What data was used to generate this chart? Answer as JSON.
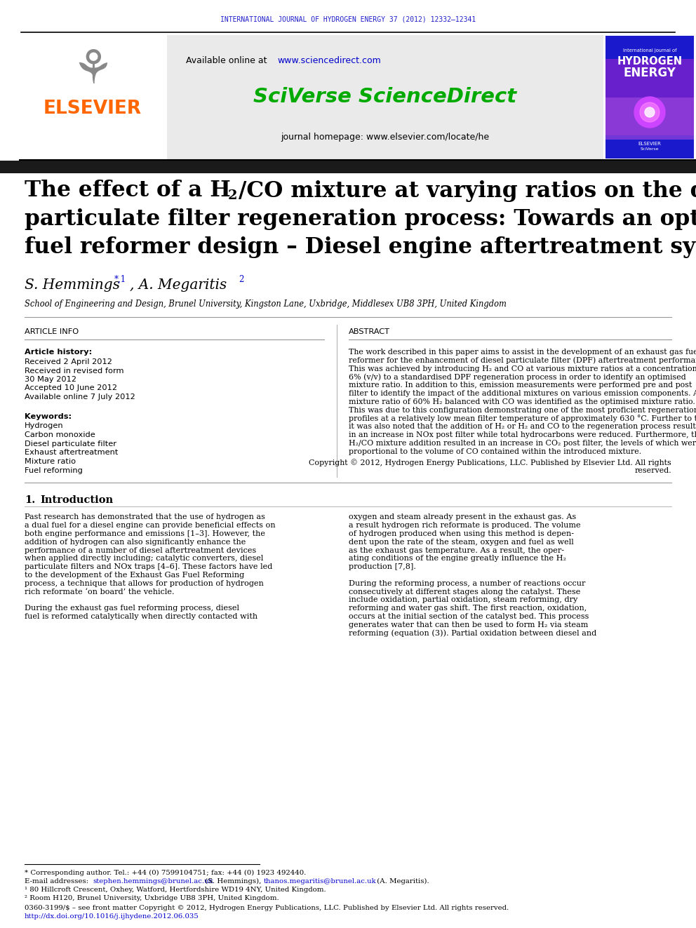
{
  "journal_header": "INTERNATIONAL JOURNAL OF HYDROGEN ENERGY 37 (2012) 12332–12341",
  "journal_header_color": "#2020cc",
  "sciencedirect_url": "www.sciencedirect.com",
  "sciencedirect_url_color": "#0000cc",
  "sciverse_text": "SciVerse ScienceDirect",
  "sciverse_color": "#00aa00",
  "journal_homepage_text": "journal homepage: www.elsevier.com/locate/he",
  "title_color": "#000000",
  "affiliation": "School of Engineering and Design, Brunel University, Kingston Lane, Uxbridge, Middlesex UB8 3PH, United Kingdom",
  "article_info_header": "ARTICLE INFO",
  "article_history_label": "Article history:",
  "received1": "Received 2 April 2012",
  "received2": "Received in revised form",
  "received2b": "30 May 2012",
  "accepted": "Accepted 10 June 2012",
  "available_online": "Available online 7 July 2012",
  "keywords_label": "Keywords:",
  "keywords": [
    "Hydrogen",
    "Carbon monoxide",
    "Diesel particulate filter",
    "Exhaust aftertreatment",
    "Mixture ratio",
    "Fuel reforming"
  ],
  "abstract_header": "ABSTRACT",
  "copyright_text": "Copyright © 2012, Hydrogen Energy Publications, LLC. Published by Elsevier Ltd. All rights reserved.",
  "footnote_star": "* Corresponding author. Tel.: +44 (0) 7599104751; fax: +44 (0) 1923 492440.",
  "footnote_email1": "E-mail addresses: ",
  "footnote_email_link1": "stephen.hemmings@brunel.ac.uk",
  "footnote_email_mid": " (S. Hemmings), ",
  "footnote_email_link2": "thanos.megaritis@brunel.ac.uk",
  "footnote_email_end": " (A. Megaritis).",
  "footnote_1": "¹ 80 Hillcroft Crescent, Oxhey, Watford, Hertfordshire WD19 4NY, United Kingdom.",
  "footnote_2": "² Room H120, Brunel University, Uxbridge UB8 3PH, United Kingdom.",
  "footnote_issn": "0360-3199/$ – see front matter Copyright © 2012, Hydrogen Energy Publications, LLC. Published by Elsevier Ltd. All rights reserved.",
  "footnote_doi": "http://dx.doi.org/10.1016/j.ijhydene.2012.06.035",
  "elsevier_color": "#ff6600",
  "background_color": "#ffffff",
  "black_bar_color": "#1a1a1a",
  "abstract_lines": [
    "The work described in this paper aims to assist in the development of an exhaust gas fuel",
    "reformer for the enhancement of diesel particulate filter (DPF) aftertreatment performance.",
    "This was achieved by introducing H₂ and CO at various mixture ratios at a concentration of",
    "6% (v/v) to a standardised DPF regeneration process in order to identify an optimised",
    "mixture ratio. In addition to this, emission measurements were performed pre and post",
    "filter to identify the impact of the additional mixtures on various emission components. A",
    "mixture ratio of 60% H₂ balanced with CO was identified as the optimised mixture ratio.",
    "This was due to this configuration demonstrating one of the most proficient regeneration",
    "profiles at a relatively low mean filter temperature of approximately 630 °C. Further to this,",
    "it was also noted that the addition of H₂ or H₂ and CO to the regeneration process resulted",
    "in an increase in NOx post filter while total hydrocarbons were reduced. Furthermore, the",
    "H₂/CO mixture addition resulted in an increase in CO₂ post filter, the levels of which were",
    "proportional to the volume of CO contained within the introduced mixture."
  ],
  "left_intro_lines": [
    "Past research has demonstrated that the use of hydrogen as",
    "a dual fuel for a diesel engine can provide beneficial effects on",
    "both engine performance and emissions [1–3]. However, the",
    "addition of hydrogen can also significantly enhance the",
    "performance of a number of diesel aftertreatment devices",
    "when applied directly including; catalytic converters, diesel",
    "particulate filters and NOx traps [4–6]. These factors have led",
    "to the development of the Exhaust Gas Fuel Reforming",
    "process, a technique that allows for production of hydrogen",
    "rich reformate ‘on board’ the vehicle.",
    "",
    "During the exhaust gas fuel reforming process, diesel",
    "fuel is reformed catalytically when directly contacted with"
  ],
  "right_intro_lines": [
    "oxygen and steam already present in the exhaust gas. As",
    "a result hydrogen rich reformate is produced. The volume",
    "of hydrogen produced when using this method is depen-",
    "dent upon the rate of the steam, oxygen and fuel as well",
    "as the exhaust gas temperature. As a result, the oper-",
    "ating conditions of the engine greatly influence the H₂",
    "production [7,8].",
    "",
    "During the reforming process, a number of reactions occur",
    "consecutively at different stages along the catalyst. These",
    "include oxidation, partial oxidation, steam reforming, dry",
    "reforming and water gas shift. The first reaction, oxidation,",
    "occurs at the initial section of the catalyst bed. This process",
    "generates water that can then be used to form H₂ via steam",
    "reforming (equation (3)). Partial oxidation between diesel and"
  ]
}
